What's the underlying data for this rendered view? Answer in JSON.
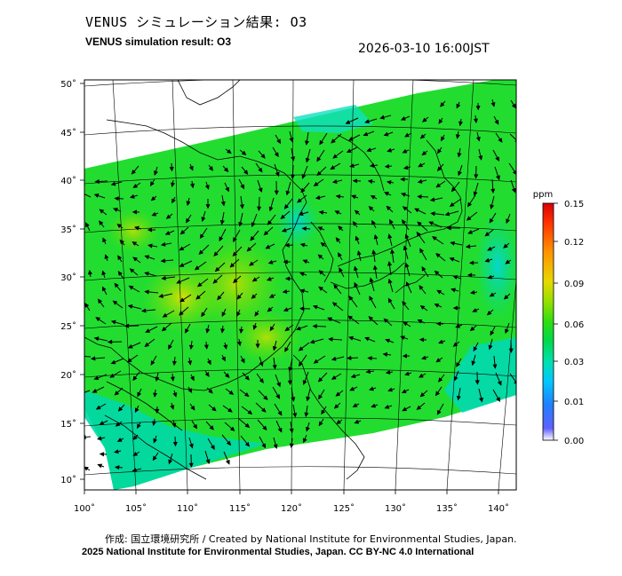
{
  "header": {
    "title_jp": "VENUS シミュレーション結果: O3",
    "title_en": "VENUS simulation result: O3",
    "timestamp": "2026-03-10 16:00JST"
  },
  "footer": {
    "credit_jp": "作成: 国立環境研究所 / Created by National Institute for Environmental Studies, Japan.",
    "credit_en": "2025 National Institute for Environmental Studies, Japan. CC BY-NC 4.0 International"
  },
  "map": {
    "lon_ticks": [
      "100˚",
      "105˚",
      "110˚",
      "115˚",
      "120˚",
      "125˚",
      "130˚",
      "135˚",
      "140˚"
    ],
    "lat_ticks": [
      "50˚",
      "45˚",
      "40˚",
      "35˚",
      "30˚",
      "25˚",
      "20˚",
      "15˚",
      "10˚"
    ],
    "lon_range": [
      100,
      142
    ],
    "lat_range": [
      9,
      51
    ]
  },
  "colorbar": {
    "unit": "ppm",
    "ticks": [
      "0.15",
      "0.12",
      "0.09",
      "0.06",
      "0.03",
      "0.01",
      "0.00"
    ],
    "colors": [
      "#ffffff",
      "#3a3aff",
      "#00c8ff",
      "#00e0a0",
      "#22dd22",
      "#a8e000",
      "#ffd400",
      "#ff8000",
      "#ff2000",
      "#d00000"
    ]
  }
}
